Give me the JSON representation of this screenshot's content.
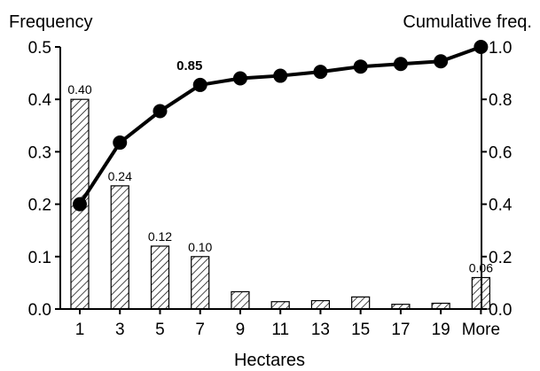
{
  "chart_data": {
    "type": "bar",
    "ylabel": "Frequency",
    "y2label": "Cumulative freq.",
    "xlabel": "Hectares",
    "categories": [
      "1",
      "3",
      "5",
      "7",
      "9",
      "11",
      "13",
      "15",
      "17",
      "19",
      "More"
    ],
    "series": [
      {
        "type": "bar",
        "axis": "left",
        "values": [
          0.4,
          0.235,
          0.12,
          0.1,
          0.033,
          0.014,
          0.016,
          0.023,
          0.009,
          0.011,
          0.06
        ],
        "labels": [
          "0.40",
          "0.24",
          "0.12",
          "0.10",
          "",
          "",
          "",
          "",
          "",
          "",
          "0.06"
        ]
      },
      {
        "type": "line",
        "axis": "right",
        "values": [
          0.4,
          0.635,
          0.755,
          0.855,
          0.88,
          0.89,
          0.905,
          0.925,
          0.935,
          0.945,
          1.0
        ],
        "labels": [
          "",
          "",
          "",
          "0.85",
          "",
          "",
          "",
          "",
          "",
          "",
          ""
        ]
      }
    ],
    "ylim": [
      0,
      0.5
    ],
    "y2lim": [
      0,
      1.0
    ],
    "yticks": [
      "0.0",
      "0.1",
      "0.2",
      "0.3",
      "0.4",
      "0.5"
    ],
    "y2ticks": [
      "0.0",
      "0.2",
      "0.4",
      "0.6",
      "0.8",
      "1.0"
    ],
    "bar_pattern": "diagonal-hatch",
    "grid": false,
    "legend": "none"
  }
}
